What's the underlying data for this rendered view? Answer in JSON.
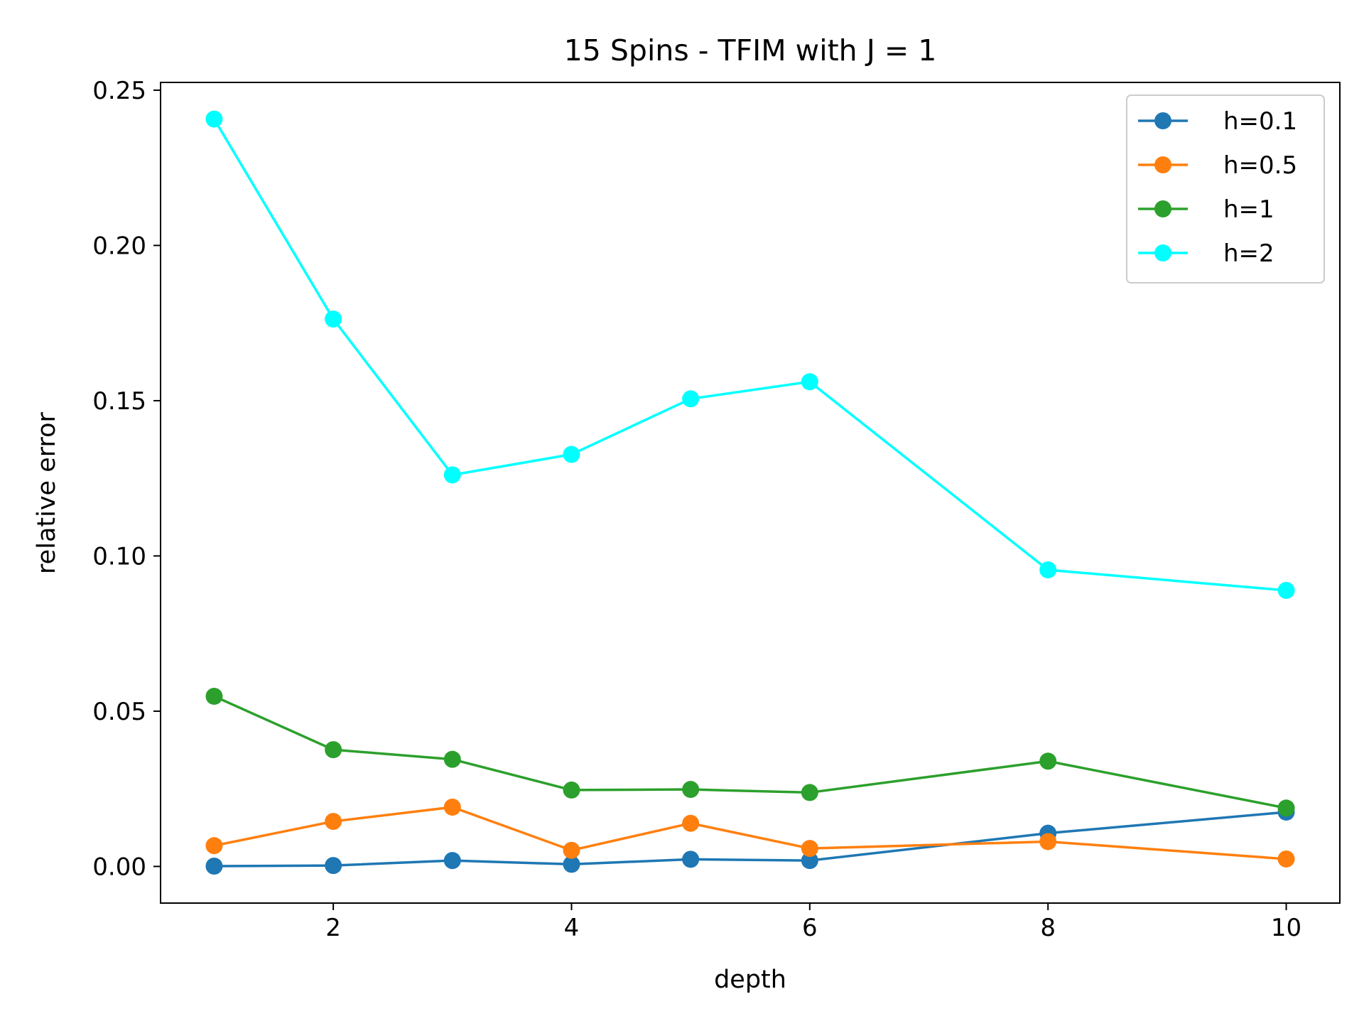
{
  "chart_data": {
    "type": "line",
    "title": "15 Spins - TFIM with J = 1",
    "xlabel": "depth",
    "ylabel": "relative error",
    "xlim": [
      0.55,
      10.45
    ],
    "ylim": [
      -0.0118,
      0.2525
    ],
    "x_ticks": [
      2,
      4,
      6,
      8,
      10
    ],
    "y_ticks": [
      0.0,
      0.05,
      0.1,
      0.15,
      0.2,
      0.25
    ],
    "grid": false,
    "legend_position": "top-right",
    "x": [
      1,
      2,
      3,
      4,
      5,
      6,
      8,
      10
    ],
    "series": [
      {
        "name": "h=0.1",
        "color": "#1f77b4",
        "values": [
          0.0001,
          0.0003,
          0.0019,
          0.0007,
          0.0023,
          0.0019,
          0.0107,
          0.0175
        ]
      },
      {
        "name": "h=0.5",
        "color": "#ff7f0e",
        "values": [
          0.0067,
          0.0145,
          0.0191,
          0.0052,
          0.0139,
          0.0058,
          0.008,
          0.0024
        ]
      },
      {
        "name": "h=1",
        "color": "#2ca02c",
        "values": [
          0.0548,
          0.0376,
          0.0345,
          0.0246,
          0.0248,
          0.0238,
          0.0339,
          0.0188
        ]
      },
      {
        "name": "h=2",
        "color": "#00ffff",
        "values": [
          0.2407,
          0.1763,
          0.1261,
          0.1327,
          0.1506,
          0.1561,
          0.0955,
          0.0889
        ]
      }
    ]
  }
}
